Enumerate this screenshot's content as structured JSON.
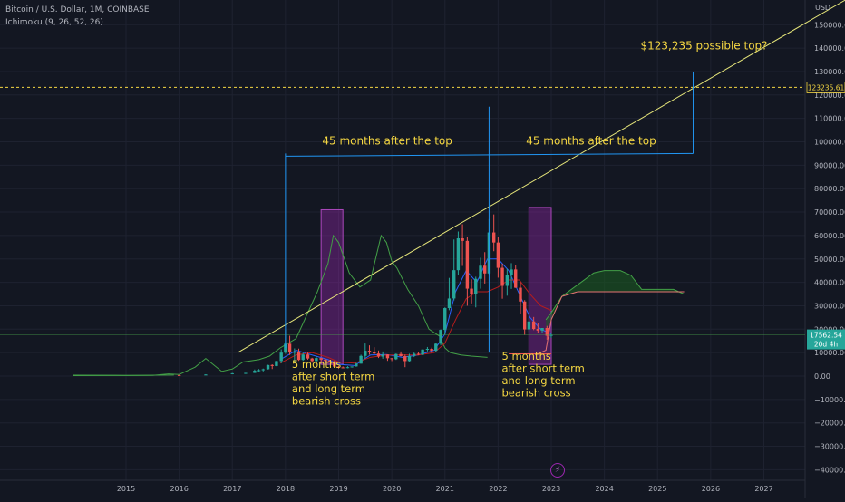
{
  "header": {
    "symbol": "Bitcoin / U.S. Dollar, 1M, COINBASE",
    "indicator": "Ichimoku (9, 26, 52, 26)"
  },
  "currency_label": "USD",
  "price_tags": {
    "target": "123235.61",
    "last_price": "17562.54",
    "countdown": "20d 4h"
  },
  "flash_icon": "flash-icon",
  "colors": {
    "background": "#131722",
    "up": "#26a69a",
    "down": "#ef5350",
    "tenkan": "#2962ff",
    "kijun": "#b71c1c",
    "chikou": "#43a047",
    "cloud": "#1b5e20",
    "annotation": "#f5d742",
    "measure": "#2196f3",
    "highlight": "#9c27b0",
    "trendline": "#e6e67a"
  },
  "chart_data": {
    "type": "candlestick",
    "title": "Bitcoin / U.S. Dollar, 1M, COINBASE",
    "xlabel": "",
    "ylabel": "USD",
    "ylim": [
      -45000,
      155000
    ],
    "xlim": [
      2014.0,
      2028.0
    ],
    "x_ticks": [
      "2015",
      "2016",
      "2017",
      "2018",
      "2019",
      "2020",
      "2021",
      "2022",
      "2023",
      "2024",
      "2025",
      "2026",
      "2027"
    ],
    "y_ticks": [
      150000,
      140000,
      130000,
      120000,
      110000,
      100000,
      90000,
      80000,
      70000,
      60000,
      50000,
      40000,
      30000,
      20000,
      10000,
      0,
      -10000,
      -20000,
      -30000,
      -40000
    ],
    "y_tick_labels": [
      "150000.00",
      "140000.00",
      "130000.00",
      "120000.00",
      "110000.00",
      "100000.00",
      "90000.00",
      "80000.00",
      "70000.00",
      "60000.00",
      "50000.00",
      "40000.00",
      "30000.00",
      "20000.00",
      "10000.00",
      "0.00",
      "−10000.00",
      "−20000.00",
      "−30000.00",
      "−40000.00"
    ],
    "candles": [
      {
        "t": 2016.0,
        "o": 430,
        "c": 370,
        "h": 460,
        "l": 350
      },
      {
        "t": 2016.5,
        "o": 600,
        "c": 650,
        "h": 780,
        "l": 550
      },
      {
        "t": 2017.0,
        "o": 970,
        "c": 1200,
        "h": 1300,
        "l": 800
      },
      {
        "t": 2017.25,
        "o": 1100,
        "c": 1350,
        "h": 1400,
        "l": 900
      },
      {
        "t": 2017.42,
        "o": 1350,
        "c": 2300,
        "h": 2800,
        "l": 1300
      },
      {
        "t": 2017.5,
        "o": 2300,
        "c": 2500,
        "h": 3000,
        "l": 1900
      },
      {
        "t": 2017.58,
        "o": 2500,
        "c": 2900,
        "h": 3200,
        "l": 2000
      },
      {
        "t": 2017.67,
        "o": 2900,
        "c": 4700,
        "h": 4800,
        "l": 2800
      },
      {
        "t": 2017.75,
        "o": 4700,
        "c": 4300,
        "h": 5000,
        "l": 3000
      },
      {
        "t": 2017.83,
        "o": 4300,
        "c": 6400,
        "h": 6500,
        "l": 4200
      },
      {
        "t": 2017.92,
        "o": 6400,
        "c": 10000,
        "h": 11400,
        "l": 5500
      },
      {
        "t": 2018.0,
        "o": 10000,
        "c": 13800,
        "h": 19800,
        "l": 9500
      },
      {
        "t": 2018.08,
        "o": 13800,
        "c": 10200,
        "h": 17200,
        "l": 9000
      },
      {
        "t": 2018.17,
        "o": 10200,
        "c": 10300,
        "h": 11800,
        "l": 6000
      },
      {
        "t": 2018.25,
        "o": 10300,
        "c": 6900,
        "h": 11700,
        "l": 6500
      },
      {
        "t": 2018.33,
        "o": 6900,
        "c": 9200,
        "h": 9900,
        "l": 6500
      },
      {
        "t": 2018.42,
        "o": 9200,
        "c": 7500,
        "h": 10000,
        "l": 7000
      },
      {
        "t": 2018.5,
        "o": 7500,
        "c": 6400,
        "h": 7800,
        "l": 5700
      },
      {
        "t": 2018.58,
        "o": 6400,
        "c": 7700,
        "h": 8500,
        "l": 6100
      },
      {
        "t": 2018.67,
        "o": 7700,
        "c": 7000,
        "h": 7800,
        "l": 5900
      },
      {
        "t": 2018.75,
        "o": 7000,
        "c": 6600,
        "h": 7400,
        "l": 6100
      },
      {
        "t": 2018.83,
        "o": 6600,
        "c": 6300,
        "h": 6800,
        "l": 6200
      },
      {
        "t": 2018.92,
        "o": 6300,
        "c": 4000,
        "h": 6500,
        "l": 3500
      },
      {
        "t": 2019.0,
        "o": 4000,
        "c": 3700,
        "h": 4300,
        "l": 3200
      },
      {
        "t": 2019.08,
        "o": 3700,
        "c": 3400,
        "h": 4100,
        "l": 3300
      },
      {
        "t": 2019.17,
        "o": 3400,
        "c": 3800,
        "h": 4200,
        "l": 3300
      },
      {
        "t": 2019.25,
        "o": 3800,
        "c": 4100,
        "h": 4100,
        "l": 3600
      },
      {
        "t": 2019.33,
        "o": 4100,
        "c": 5300,
        "h": 5600,
        "l": 4000
      },
      {
        "t": 2019.42,
        "o": 5300,
        "c": 8600,
        "h": 9100,
        "l": 5300
      },
      {
        "t": 2019.5,
        "o": 8600,
        "c": 10800,
        "h": 13900,
        "l": 7500
      },
      {
        "t": 2019.58,
        "o": 10800,
        "c": 10100,
        "h": 13100,
        "l": 9100
      },
      {
        "t": 2019.67,
        "o": 10100,
        "c": 9600,
        "h": 12300,
        "l": 9300
      },
      {
        "t": 2019.75,
        "o": 9600,
        "c": 8300,
        "h": 10900,
        "l": 7700
      },
      {
        "t": 2019.83,
        "o": 8300,
        "c": 9200,
        "h": 10500,
        "l": 7400
      },
      {
        "t": 2019.92,
        "o": 9200,
        "c": 7600,
        "h": 9300,
        "l": 6500
      },
      {
        "t": 2020.0,
        "o": 7600,
        "c": 7200,
        "h": 7700,
        "l": 6400
      },
      {
        "t": 2020.08,
        "o": 7200,
        "c": 9400,
        "h": 9600,
        "l": 6900
      },
      {
        "t": 2020.17,
        "o": 9400,
        "c": 8500,
        "h": 10500,
        "l": 8400
      },
      {
        "t": 2020.25,
        "o": 8500,
        "c": 6400,
        "h": 9200,
        "l": 3800
      },
      {
        "t": 2020.33,
        "o": 6400,
        "c": 8600,
        "h": 9500,
        "l": 6200
      },
      {
        "t": 2020.42,
        "o": 8600,
        "c": 9500,
        "h": 10000,
        "l": 8100
      },
      {
        "t": 2020.5,
        "o": 9500,
        "c": 9100,
        "h": 10400,
        "l": 8900
      },
      {
        "t": 2020.58,
        "o": 9100,
        "c": 11300,
        "h": 11400,
        "l": 8900
      },
      {
        "t": 2020.67,
        "o": 11300,
        "c": 11600,
        "h": 12400,
        "l": 10500
      },
      {
        "t": 2020.75,
        "o": 11600,
        "c": 10800,
        "h": 12100,
        "l": 9900
      },
      {
        "t": 2020.83,
        "o": 10800,
        "c": 13800,
        "h": 14100,
        "l": 10400
      },
      {
        "t": 2020.92,
        "o": 13800,
        "c": 19700,
        "h": 19900,
        "l": 13200
      },
      {
        "t": 2021.0,
        "o": 19700,
        "c": 29000,
        "h": 29300,
        "l": 17600
      },
      {
        "t": 2021.08,
        "o": 29000,
        "c": 33100,
        "h": 41900,
        "l": 28100
      },
      {
        "t": 2021.17,
        "o": 33100,
        "c": 45200,
        "h": 58300,
        "l": 32300
      },
      {
        "t": 2021.25,
        "o": 45200,
        "c": 58800,
        "h": 61700,
        "l": 43000
      },
      {
        "t": 2021.33,
        "o": 58800,
        "c": 57700,
        "h": 64800,
        "l": 47000
      },
      {
        "t": 2021.42,
        "o": 57700,
        "c": 37300,
        "h": 59500,
        "l": 30000
      },
      {
        "t": 2021.5,
        "o": 37300,
        "c": 35000,
        "h": 41300,
        "l": 31000
      },
      {
        "t": 2021.58,
        "o": 35000,
        "c": 41500,
        "h": 42400,
        "l": 29300
      },
      {
        "t": 2021.67,
        "o": 41500,
        "c": 47100,
        "h": 50500,
        "l": 37300
      },
      {
        "t": 2021.75,
        "o": 47100,
        "c": 43800,
        "h": 52900,
        "l": 39500
      },
      {
        "t": 2021.83,
        "o": 43800,
        "c": 61300,
        "h": 67000,
        "l": 43200
      },
      {
        "t": 2021.92,
        "o": 61300,
        "c": 57000,
        "h": 69000,
        "l": 53300
      },
      {
        "t": 2022.0,
        "o": 57000,
        "c": 46200,
        "h": 59200,
        "l": 42000
      },
      {
        "t": 2022.08,
        "o": 46200,
        "c": 38500,
        "h": 48000,
        "l": 33000
      },
      {
        "t": 2022.17,
        "o": 38500,
        "c": 43200,
        "h": 45800,
        "l": 34300
      },
      {
        "t": 2022.25,
        "o": 43200,
        "c": 45500,
        "h": 48200,
        "l": 37200
      },
      {
        "t": 2022.33,
        "o": 45500,
        "c": 37700,
        "h": 47500,
        "l": 37600
      },
      {
        "t": 2022.42,
        "o": 37700,
        "c": 31800,
        "h": 40000,
        "l": 26700
      },
      {
        "t": 2022.5,
        "o": 31800,
        "c": 19900,
        "h": 32400,
        "l": 17600
      },
      {
        "t": 2022.58,
        "o": 19900,
        "c": 23300,
        "h": 24700,
        "l": 18800
      },
      {
        "t": 2022.67,
        "o": 23300,
        "c": 20100,
        "h": 25200,
        "l": 19600
      },
      {
        "t": 2022.75,
        "o": 20100,
        "c": 19400,
        "h": 22800,
        "l": 18200
      },
      {
        "t": 2022.83,
        "o": 19400,
        "c": 20500,
        "h": 20500,
        "l": 18500
      },
      {
        "t": 2022.92,
        "o": 20500,
        "c": 17200,
        "h": 21400,
        "l": 15500
      },
      {
        "t": 2023.0,
        "o": 17200,
        "c": 17560,
        "h": 18000,
        "l": 16300
      }
    ],
    "trendline": {
      "x": [
        2017.1,
        2025.7
      ],
      "y": [
        10000,
        123235
      ]
    },
    "target_level": 123235.61,
    "last_price": 17562.54,
    "measure_boxes": [
      {
        "x1": 2018.0,
        "x2": 2021.83,
        "y": 95000,
        "label": "45 months after the top"
      },
      {
        "x1": 2021.83,
        "x2": 2025.67,
        "y": 95000,
        "label": "45 months after the top",
        "target_y": 130000
      }
    ],
    "highlight_zones": [
      {
        "x1": 2018.67,
        "x2": 2019.08,
        "y1": 5000,
        "y2": 71000
      },
      {
        "x1": 2022.58,
        "x2": 2023.0,
        "y1": 5000,
        "y2": 72000
      }
    ],
    "annotations": [
      {
        "lines": [
          "5 months",
          "after short term",
          "and long term",
          "bearish cross"
        ],
        "x": 2018.12,
        "y": 3500
      },
      {
        "lines": [
          "5 months",
          "after short term",
          "and long term",
          "bearish cross"
        ],
        "x": 2022.07,
        "y": 7000
      },
      {
        "lines": [
          "$123,235 possible top?"
        ],
        "x": 2024.68,
        "y": 139500
      }
    ]
  }
}
